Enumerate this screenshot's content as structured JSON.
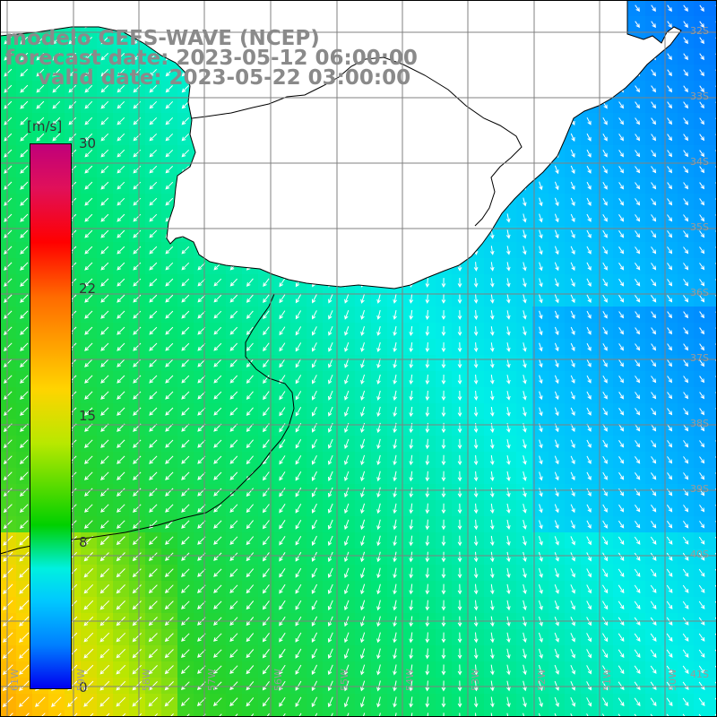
{
  "title": {
    "line1": "modelo GEFS-WAVE (NCEP)",
    "line2": "forecast date: 2023-05-12 06:00:00",
    "line3": "valid date: 2023-05-22 03:00:00"
  },
  "colorbar": {
    "units": "[m/s]",
    "ticks": [
      "30",
      "22",
      "15",
      "8",
      "0"
    ],
    "tick_values": [
      30,
      22,
      15,
      8,
      0
    ]
  },
  "lat_labels": [
    "32S",
    "33S",
    "34S",
    "35S",
    "36S",
    "37S",
    "38S",
    "39S",
    "40S",
    "41S"
  ],
  "lon_labels": [
    "61W",
    "59W",
    "58W",
    "57W",
    "56W",
    "55W",
    "54W",
    "53W",
    "52W",
    "51W",
    "50W"
  ],
  "colors": {
    "land": "#ffffff",
    "coastline": "#000000",
    "grid": "#808080",
    "title_text": "#8a8a8a",
    "arrow": "#ffffff"
  },
  "field": {
    "variable": "wind speed",
    "units": "m/s",
    "range": [
      0,
      30
    ]
  }
}
